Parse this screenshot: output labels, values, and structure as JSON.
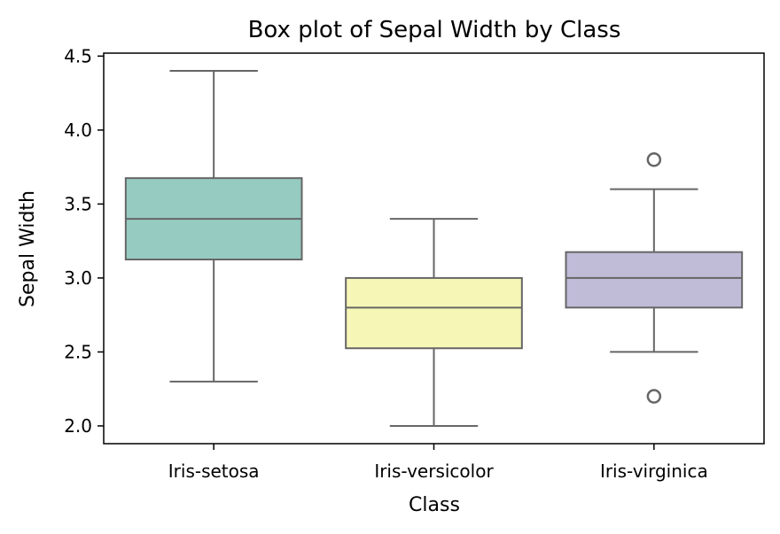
{
  "chart_data": {
    "type": "box",
    "title": "Box plot of Sepal Width by Class",
    "xlabel": "Class",
    "ylabel": "Sepal Width",
    "ylim": [
      1.88,
      4.52
    ],
    "yticks": [
      "2.0",
      "2.5",
      "3.0",
      "3.5",
      "4.0",
      "4.5"
    ],
    "grid": false,
    "categories": [
      "Iris-setosa",
      "Iris-versicolor",
      "Iris-virginica"
    ],
    "boxes": [
      {
        "category": "Iris-setosa",
        "whisker_low": 2.3,
        "q1": 3.125,
        "median": 3.4,
        "q3": 3.675,
        "whisker_high": 4.4,
        "outliers": [],
        "color": "#96cbc1"
      },
      {
        "category": "Iris-versicolor",
        "whisker_low": 2.0,
        "q1": 2.525,
        "median": 2.8,
        "q3": 3.0,
        "whisker_high": 3.4,
        "outliers": [],
        "color": "#f6f6b7"
      },
      {
        "category": "Iris-virginica",
        "whisker_low": 2.5,
        "q1": 2.8,
        "median": 3.0,
        "q3": 3.175,
        "whisker_high": 3.6,
        "outliers": [
          3.8,
          2.2
        ],
        "color": "#c0bbd7"
      }
    ],
    "line_color": "#666666"
  }
}
